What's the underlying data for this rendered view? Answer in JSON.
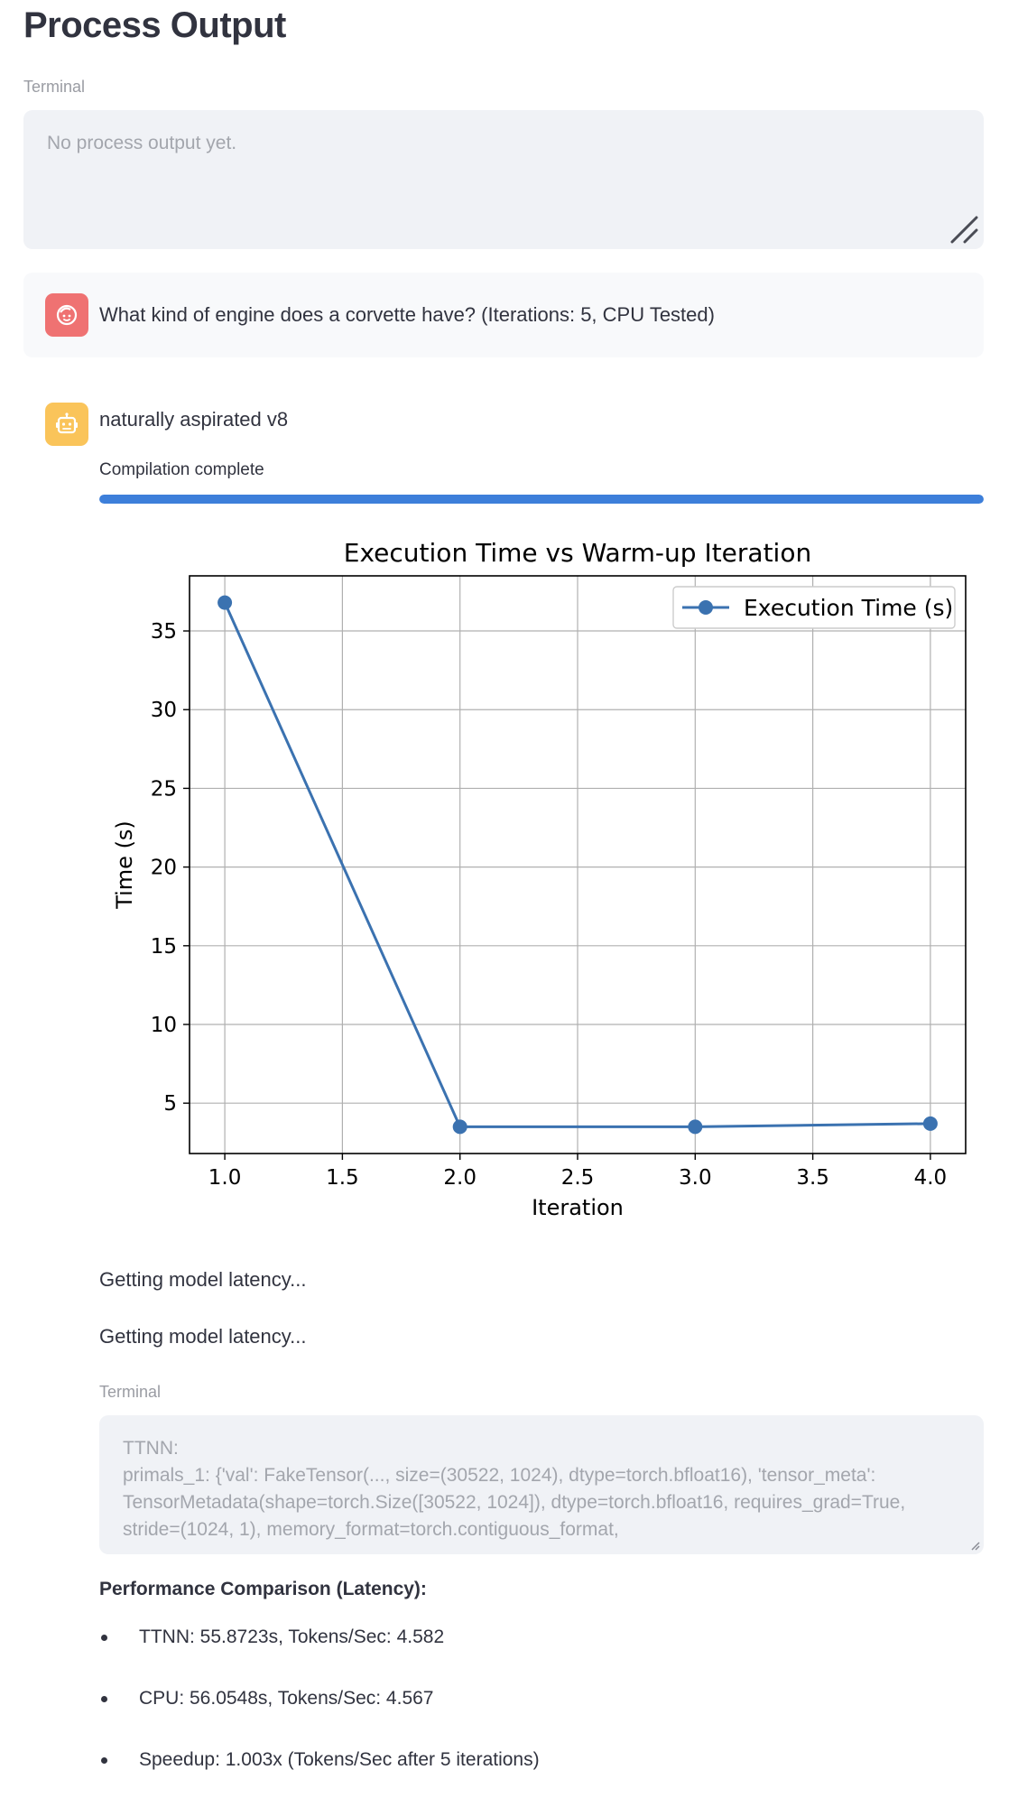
{
  "page": {
    "title": "Process Output"
  },
  "terminal1": {
    "label": "Terminal",
    "text": "No process output yet."
  },
  "user_message": {
    "text": "What kind of engine does a corvette have? (Iterations: 5, CPU Tested)"
  },
  "assistant_message": {
    "text": "naturally aspirated v8"
  },
  "progress": {
    "label": "Compilation complete",
    "fraction": 1.0,
    "color": "#3d7fda"
  },
  "chart_data": {
    "type": "line",
    "title": "Execution Time vs Warm-up Iteration",
    "xlabel": "Iteration",
    "ylabel": "Time (s)",
    "series": [
      {
        "name": "Execution Time (s)",
        "x": [
          1,
          2,
          3,
          4
        ],
        "values": [
          36.8,
          3.5,
          3.5,
          3.7
        ],
        "color": "#3b72b0",
        "marker": "circle"
      }
    ],
    "xlim": [
      0.85,
      4.15
    ],
    "ylim": [
      1.8,
      38.5
    ],
    "xticks": [
      "1.0",
      "1.5",
      "2.0",
      "2.5",
      "3.0",
      "3.5",
      "4.0"
    ],
    "yticks": [
      "5",
      "10",
      "15",
      "20",
      "25",
      "30",
      "35"
    ],
    "grid": true,
    "legend_position": "top-right"
  },
  "status_lines": [
    "Getting model latency...",
    "Getting model latency..."
  ],
  "terminal2": {
    "label": "Terminal",
    "text": "TTNN:\nprimals_1: {'val': FakeTensor(..., size=(30522, 1024), dtype=torch.bfloat16), 'tensor_meta': TensorMetadata(shape=torch.Size([30522, 1024]), dtype=torch.bfloat16, requires_grad=True, stride=(1024, 1), memory_format=torch.contiguous_format,"
  },
  "performance": {
    "title": "Performance Comparison (Latency):",
    "items": [
      "TTNN: 55.8723s, Tokens/Sec: 4.582",
      "CPU: 56.0548s, Tokens/Sec: 4.567",
      "Speedup: 1.003x (Tokens/Sec after 5 iterations)"
    ]
  },
  "colors": {
    "user_avatar": "#ef7272",
    "assistant_avatar": "#fac45a"
  }
}
